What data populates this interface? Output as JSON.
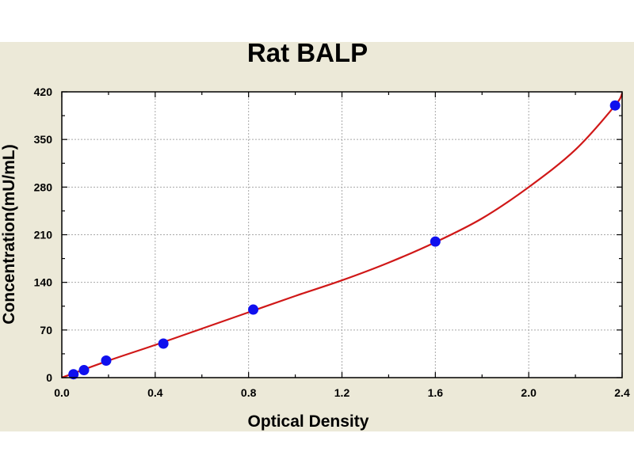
{
  "chart_data": {
    "type": "scatter",
    "title": "Rat BALP",
    "xlabel": "Optical Density",
    "ylabel": "Concentration(mU/mL)",
    "xlim": [
      0,
      2.4
    ],
    "ylim": [
      0,
      420
    ],
    "x_ticks": [
      "0.0",
      "0.4",
      "0.8",
      "1.2",
      "1.6",
      "2.0",
      "2.4"
    ],
    "y_ticks": [
      "0",
      "70",
      "140",
      "210",
      "280",
      "350",
      "420"
    ],
    "grid": true,
    "series": [
      {
        "kind": "points",
        "color": "#1010ee",
        "points": [
          {
            "x": 0.05,
            "y": 5
          },
          {
            "x": 0.095,
            "y": 11
          },
          {
            "x": 0.19,
            "y": 25
          },
          {
            "x": 0.435,
            "y": 50
          },
          {
            "x": 0.82,
            "y": 100
          },
          {
            "x": 1.6,
            "y": 200
          },
          {
            "x": 2.37,
            "y": 400
          }
        ]
      },
      {
        "kind": "fit-curve",
        "color": "#d01818",
        "points": [
          {
            "x": 0.0,
            "y": 0
          },
          {
            "x": 0.2,
            "y": 25
          },
          {
            "x": 0.4,
            "y": 48
          },
          {
            "x": 0.6,
            "y": 72
          },
          {
            "x": 0.8,
            "y": 96
          },
          {
            "x": 1.0,
            "y": 120
          },
          {
            "x": 1.2,
            "y": 143
          },
          {
            "x": 1.4,
            "y": 169
          },
          {
            "x": 1.6,
            "y": 199
          },
          {
            "x": 1.8,
            "y": 234
          },
          {
            "x": 2.0,
            "y": 280
          },
          {
            "x": 2.2,
            "y": 335
          },
          {
            "x": 2.37,
            "y": 400
          },
          {
            "x": 2.4,
            "y": 418
          }
        ]
      }
    ]
  }
}
